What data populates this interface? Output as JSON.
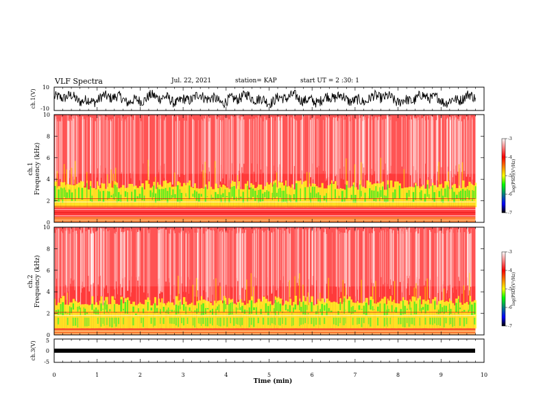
{
  "header": {
    "title": "VLF Spectra",
    "date": "Jul. 22, 2021",
    "station": "station= KAP",
    "start_ut": "start UT = 2 :30: 1"
  },
  "chart_data": [
    {
      "id": "ch1-waveform",
      "type": "line",
      "ylabel": "ch.1(V)",
      "ylim": [
        -10,
        10
      ],
      "yticks": [
        "10",
        "-10"
      ],
      "xlim": [
        0,
        10
      ],
      "description_values": "noisy black trace, amplitude roughly -5 to 5 V"
    },
    {
      "id": "ch1-spectrogram",
      "type": "heatmap",
      "ylabel_line1": "ch.1",
      "ylabel_line2": "Frequency (kHz)",
      "ylim": [
        0,
        10
      ],
      "yticks": [
        "0",
        "2",
        "4",
        "6",
        "8",
        "10"
      ],
      "xlim": [
        0,
        10
      ],
      "data_end_min": 9.8,
      "colorbar": {
        "label": "log(PSD)(V²/Hz)",
        "range": [
          -7,
          -3
        ],
        "ticks": [
          "-3",
          "-4",
          "-5",
          "-6",
          "-7"
        ]
      }
    },
    {
      "id": "ch2-spectrogram",
      "type": "heatmap",
      "ylabel_line1": "ch.2",
      "ylabel_line2": "Frequency (kHz)",
      "ylim": [
        0,
        10
      ],
      "yticks": [
        "0",
        "2",
        "4",
        "6",
        "8",
        "10"
      ],
      "xlim": [
        0,
        10
      ],
      "data_end_min": 9.8,
      "colorbar": {
        "label": "log(PSD)(V²/Hz)",
        "range": [
          -7,
          -3
        ],
        "ticks": [
          "-3",
          "-4",
          "-5",
          "-6",
          "-7"
        ]
      }
    },
    {
      "id": "ch3-waveform",
      "type": "line",
      "ylabel": "ch.3(V)",
      "ylim": [
        -5,
        5
      ],
      "yticks": [
        "5",
        "0",
        "-5"
      ],
      "xlim": [
        0,
        10
      ],
      "xlabel": "Time (min)",
      "xticks": [
        "0",
        "1",
        "2",
        "3",
        "4",
        "5",
        "6",
        "7",
        "8",
        "9",
        "10"
      ]
    }
  ],
  "colors": {
    "trace": "#000000",
    "background": "#ff3030",
    "cb_stops": [
      "#ffffff",
      "#ff0000",
      "#ffff00",
      "#00ff00",
      "#0000ff",
      "#000000"
    ]
  }
}
